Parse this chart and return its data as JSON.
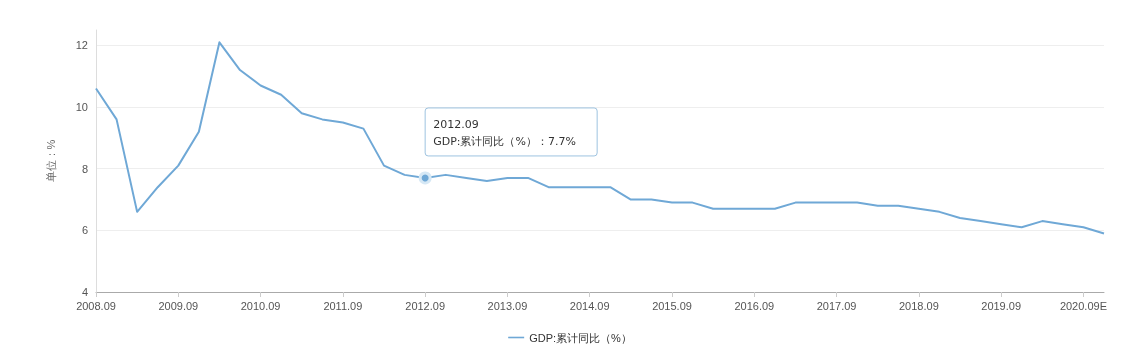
{
  "chart_data": {
    "type": "line",
    "ylabel": "单位：%",
    "categories": [
      "2008.09",
      null,
      null,
      null,
      "2009.09",
      null,
      null,
      null,
      "2010.09",
      null,
      null,
      null,
      "2011.09",
      null,
      null,
      null,
      "2012.09",
      null,
      null,
      null,
      "2013.09",
      null,
      null,
      null,
      "2014.09",
      null,
      null,
      null,
      "2015.09",
      null,
      null,
      null,
      "2016.09",
      null,
      null,
      null,
      "2017.09",
      null,
      null,
      null,
      "2018.09",
      null,
      null,
      null,
      "2019.09",
      null,
      null,
      null,
      "2020.09E",
      null
    ],
    "series": [
      {
        "name": "GDP:累计同比（%）",
        "color": "#6fa8d6",
        "values": [
          10.6,
          9.6,
          6.6,
          7.4,
          8.1,
          9.2,
          12.1,
          11.2,
          10.7,
          10.4,
          9.8,
          9.6,
          9.5,
          9.3,
          8.1,
          7.8,
          7.7,
          7.8,
          7.7,
          7.6,
          7.7,
          7.7,
          7.4,
          7.4,
          7.4,
          7.4,
          7.0,
          7.0,
          6.9,
          6.9,
          6.7,
          6.7,
          6.7,
          6.7,
          6.9,
          6.9,
          6.9,
          6.9,
          6.8,
          6.8,
          6.7,
          6.6,
          6.4,
          6.3,
          6.2,
          6.1,
          6.3,
          6.2,
          6.1,
          5.9
        ]
      }
    ],
    "ylim": [
      4,
      12.5
    ],
    "yticks": [
      4,
      6,
      8,
      10,
      12
    ],
    "grid": "y",
    "legend": "bottom",
    "marker": "none",
    "line_style": "solid",
    "annotations": [
      {
        "text": "2012.09\nGDP:累计同比（%）：7.7%",
        "x": "2012.09",
        "y": 7.7
      }
    ]
  }
}
